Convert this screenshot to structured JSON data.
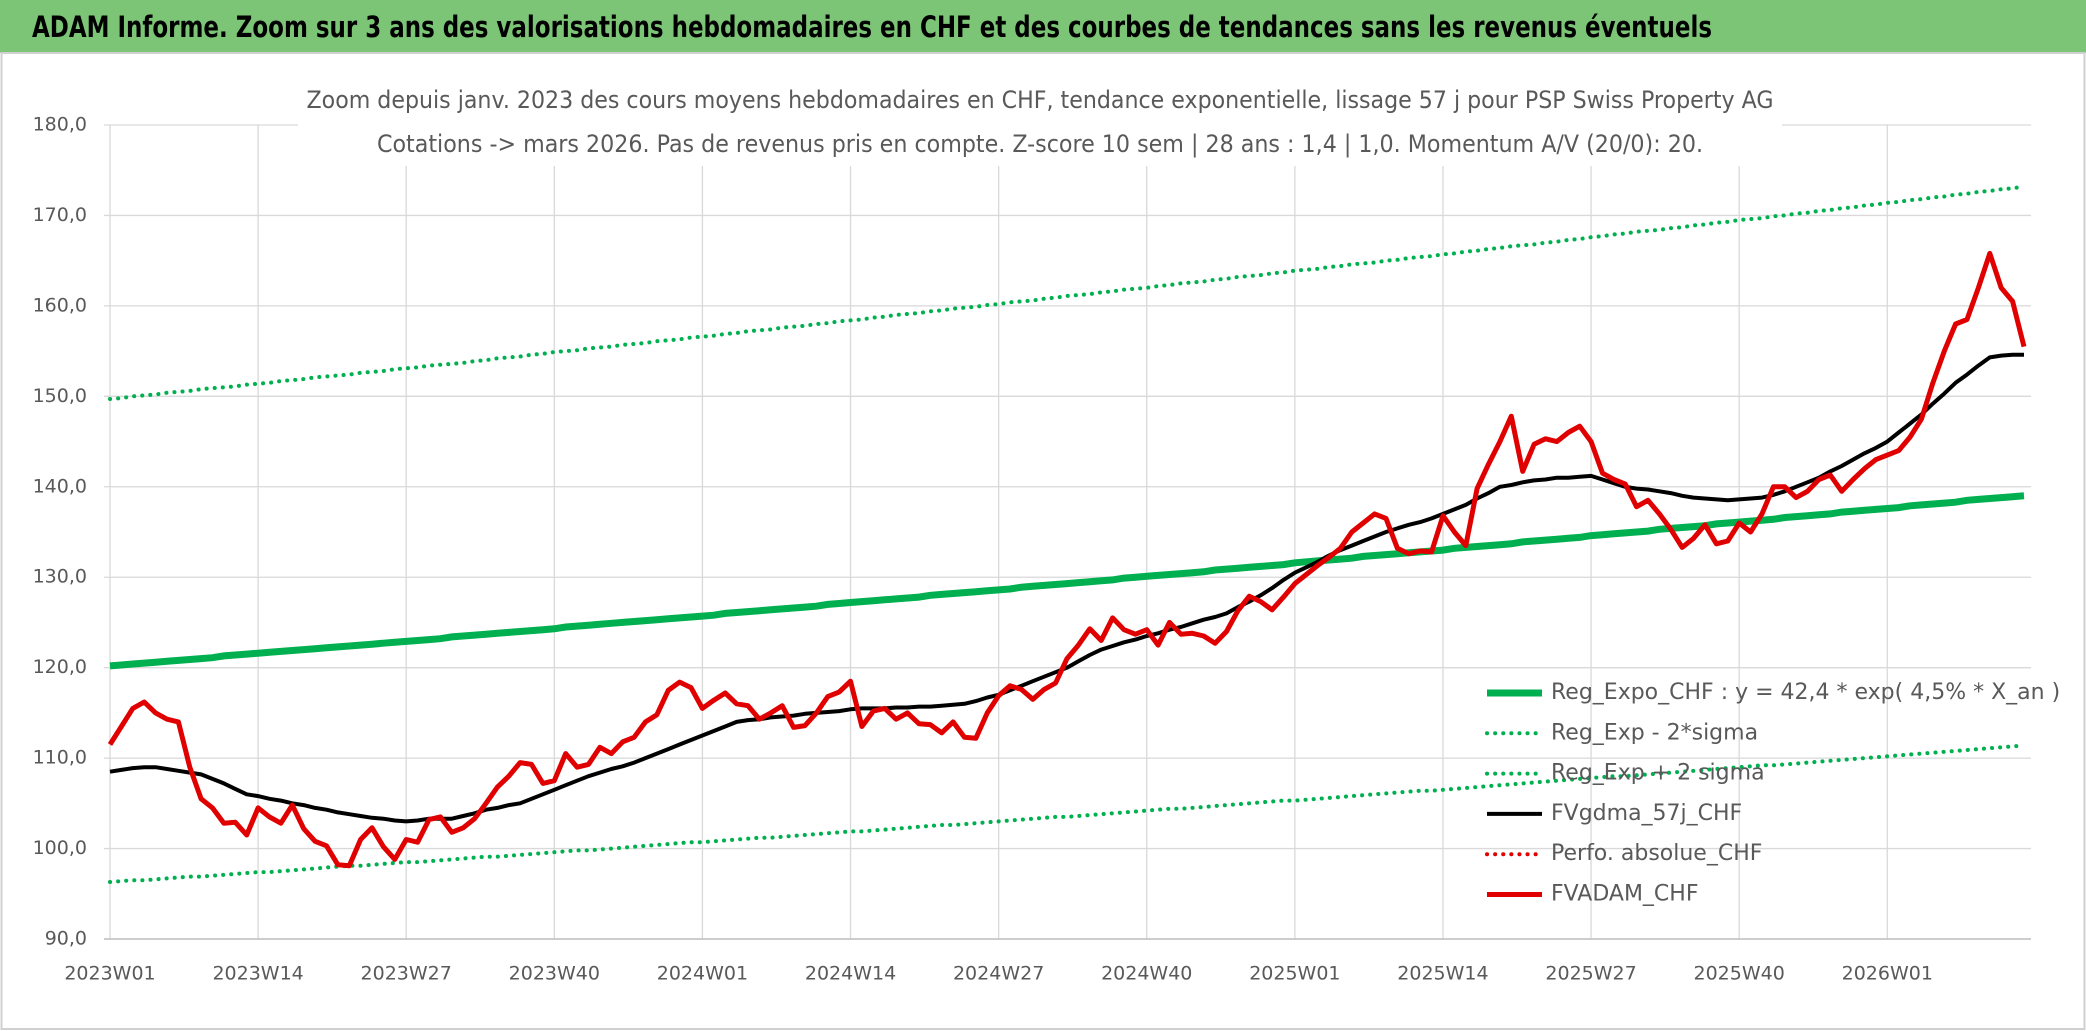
{
  "chart_data": {
    "type": "line",
    "banner": "ADAM Informe. Zoom sur 3 ans des valorisations hebdomadaires en CHF et des courbes de tendances sans les revenus éventuels",
    "title": "Zoom depuis janv. 2023 des cours moyens hebdomadaires en CHF, tendance exponentielle, lissage 57 j pour PSP Swiss Property AG",
    "subtitle": "Cotations -> mars 2026. Pas de revenus pris en compte. Z-score 10 sem | 28 ans : 1,4 | 1,0. Momentum A/V (20/0): 20.",
    "categories": [
      "2023W01",
      null,
      null,
      null,
      null,
      null,
      null,
      null,
      null,
      null,
      null,
      null,
      null,
      "2023W14",
      null,
      null,
      null,
      null,
      null,
      null,
      null,
      null,
      null,
      null,
      null,
      null,
      "2023W27",
      null,
      null,
      null,
      null,
      null,
      null,
      null,
      null,
      null,
      null,
      null,
      null,
      "2023W40",
      null,
      null,
      null,
      null,
      null,
      null,
      null,
      null,
      null,
      null,
      null,
      null,
      "2024W01",
      null,
      null,
      null,
      null,
      null,
      null,
      null,
      null,
      null,
      null,
      null,
      null,
      "2024W14",
      null,
      null,
      null,
      null,
      null,
      null,
      null,
      null,
      null,
      null,
      null,
      null,
      "2024W27",
      null,
      null,
      null,
      null,
      null,
      null,
      null,
      null,
      null,
      null,
      null,
      null,
      "2024W40",
      null,
      null,
      null,
      null,
      null,
      null,
      null,
      null,
      null,
      null,
      null,
      null,
      "2025W01",
      null,
      null,
      null,
      null,
      null,
      null,
      null,
      null,
      null,
      null,
      null,
      null,
      "2025W14",
      null,
      null,
      null,
      null,
      null,
      null,
      null,
      null,
      null,
      null,
      null,
      null,
      "2025W27",
      null,
      null,
      null,
      null,
      null,
      null,
      null,
      null,
      null,
      null,
      null,
      null,
      "2025W40",
      null,
      null,
      null,
      null,
      null,
      null,
      null,
      null,
      null,
      null,
      null,
      null,
      "2026W01",
      null,
      null,
      null,
      null,
      null,
      null,
      null,
      null,
      null,
      null,
      null,
      null
    ],
    "ylim": [
      90,
      180
    ],
    "yticks": [
      {
        "value": 90,
        "label": "90,0"
      },
      {
        "value": 100,
        "label": "100,0"
      },
      {
        "value": 110,
        "label": "110,0"
      },
      {
        "value": 120,
        "label": "120,0"
      },
      {
        "value": 130,
        "label": "130,0"
      },
      {
        "value": 140,
        "label": "140,0"
      },
      {
        "value": 150,
        "label": "150,0"
      },
      {
        "value": 160,
        "label": "160,0"
      },
      {
        "value": 170,
        "label": "170,0"
      },
      {
        "value": 180,
        "label": "180,0"
      }
    ],
    "grid": true,
    "legend": "bottom-right",
    "series": [
      {
        "name": "Reg_Expo_CHF : y = 42,4 * exp( 4,5% *  X_an )",
        "color": "#00b050",
        "style": "thick",
        "values": [
          120.2,
          120.3,
          120.4,
          120.5,
          120.6,
          120.7,
          120.8,
          120.9,
          121.0,
          121.1,
          121.3,
          121.4,
          121.5,
          121.6,
          121.7,
          121.8,
          121.9,
          122.0,
          122.1,
          122.2,
          122.3,
          122.4,
          122.5,
          122.6,
          122.7,
          122.8,
          122.9,
          123.0,
          123.1,
          123.2,
          123.4,
          123.5,
          123.6,
          123.7,
          123.8,
          123.9,
          124.0,
          124.1,
          124.2,
          124.3,
          124.5,
          124.6,
          124.7,
          124.8,
          124.9,
          125.0,
          125.1,
          125.2,
          125.3,
          125.4,
          125.5,
          125.6,
          125.7,
          125.8,
          126.0,
          126.1,
          126.2,
          126.3,
          126.4,
          126.5,
          126.6,
          126.7,
          126.8,
          127.0,
          127.1,
          127.2,
          127.3,
          127.4,
          127.5,
          127.6,
          127.7,
          127.8,
          128.0,
          128.1,
          128.2,
          128.3,
          128.4,
          128.5,
          128.6,
          128.7,
          128.9,
          129.0,
          129.1,
          129.2,
          129.3,
          129.4,
          129.5,
          129.6,
          129.7,
          129.9,
          130.0,
          130.1,
          130.2,
          130.3,
          130.4,
          130.5,
          130.6,
          130.8,
          130.9,
          131.0,
          131.1,
          131.2,
          131.3,
          131.4,
          131.6,
          131.7,
          131.8,
          131.9,
          132.0,
          132.1,
          132.3,
          132.4,
          132.5,
          132.6,
          132.7,
          132.8,
          132.9,
          133.0,
          133.2,
          133.3,
          133.4,
          133.5,
          133.6,
          133.7,
          133.9,
          134.0,
          134.1,
          134.2,
          134.3,
          134.4,
          134.6,
          134.7,
          134.8,
          134.9,
          135.0,
          135.1,
          135.3,
          135.4,
          135.5,
          135.6,
          135.7,
          135.9,
          136.0,
          136.1,
          136.2,
          136.3,
          136.4,
          136.6,
          136.7,
          136.8,
          136.9,
          137.0,
          137.2,
          137.3,
          137.4,
          137.5,
          137.6,
          137.7,
          137.9,
          138.0,
          138.1,
          138.2,
          138.3,
          138.5,
          138.6,
          138.7,
          138.8,
          138.9,
          139.0
        ]
      },
      {
        "name": "Reg_Exp - 2*sigma",
        "color": "#00b050",
        "style": "dotted",
        "values": [
          96.3,
          96.4,
          96.5,
          96.5,
          96.6,
          96.7,
          96.8,
          96.9,
          96.9,
          97.0,
          97.1,
          97.2,
          97.3,
          97.4,
          97.4,
          97.5,
          97.6,
          97.7,
          97.8,
          97.9,
          98.0,
          98.1,
          98.1,
          98.2,
          98.3,
          98.4,
          98.5,
          98.5,
          98.6,
          98.7,
          98.8,
          98.9,
          99.0,
          99.1,
          99.1,
          99.2,
          99.3,
          99.4,
          99.5,
          99.6,
          99.7,
          99.8,
          99.8,
          99.9,
          100.0,
          100.1,
          100.2,
          100.3,
          100.4,
          100.5,
          100.6,
          100.7,
          100.7,
          100.8,
          100.9,
          101.0,
          101.1,
          101.2,
          101.2,
          101.3,
          101.4,
          101.5,
          101.6,
          101.7,
          101.8,
          101.9,
          101.9,
          102.0,
          102.1,
          102.2,
          102.3,
          102.4,
          102.5,
          102.6,
          102.6,
          102.7,
          102.8,
          102.9,
          103.0,
          103.1,
          103.2,
          103.3,
          103.4,
          103.5,
          103.5,
          103.6,
          103.7,
          103.8,
          103.9,
          104.0,
          104.1,
          104.2,
          104.3,
          104.4,
          104.4,
          104.5,
          104.6,
          104.7,
          104.8,
          104.9,
          105.0,
          105.1,
          105.2,
          105.3,
          105.3,
          105.4,
          105.5,
          105.6,
          105.7,
          105.8,
          105.9,
          106.0,
          106.1,
          106.2,
          106.3,
          106.4,
          106.4,
          106.5,
          106.6,
          106.7,
          106.8,
          106.9,
          107.0,
          107.1,
          107.2,
          107.3,
          107.4,
          107.5,
          107.6,
          107.7,
          107.8,
          107.9,
          108.0,
          108.0,
          108.1,
          108.2,
          108.3,
          108.4,
          108.5,
          108.6,
          108.7,
          108.8,
          108.9,
          109.0,
          109.1,
          109.2,
          109.2,
          109.3,
          109.4,
          109.5,
          109.6,
          109.7,
          109.8,
          109.9,
          110.0,
          110.1,
          110.2,
          110.3,
          110.4,
          110.5,
          110.6,
          110.7,
          110.8,
          110.9,
          111.0,
          111.1,
          111.2,
          111.3,
          111.4
        ]
      },
      {
        "name": "Reg_Exp + 2 sigma",
        "color": "#00b050",
        "style": "dotted",
        "values": [
          149.7,
          149.8,
          150.0,
          150.1,
          150.2,
          150.4,
          150.5,
          150.6,
          150.8,
          150.9,
          151.0,
          151.1,
          151.3,
          151.4,
          151.5,
          151.7,
          151.8,
          151.9,
          152.1,
          152.2,
          152.3,
          152.4,
          152.6,
          152.7,
          152.8,
          153.0,
          153.1,
          153.2,
          153.4,
          153.5,
          153.6,
          153.7,
          153.9,
          154.0,
          154.2,
          154.3,
          154.4,
          154.6,
          154.7,
          154.9,
          155.0,
          155.1,
          155.3,
          155.4,
          155.5,
          155.7,
          155.8,
          155.9,
          156.1,
          156.2,
          156.3,
          156.5,
          156.6,
          156.7,
          156.9,
          157.0,
          157.2,
          157.3,
          157.4,
          157.6,
          157.7,
          157.8,
          158.0,
          158.1,
          158.3,
          158.4,
          158.5,
          158.7,
          158.8,
          159.0,
          159.1,
          159.2,
          159.4,
          159.5,
          159.7,
          159.8,
          159.9,
          160.1,
          160.2,
          160.4,
          160.5,
          160.6,
          160.8,
          160.9,
          161.1,
          161.2,
          161.3,
          161.5,
          161.6,
          161.8,
          161.9,
          162.0,
          162.2,
          162.3,
          162.5,
          162.6,
          162.7,
          162.9,
          163.0,
          163.2,
          163.3,
          163.4,
          163.6,
          163.7,
          163.9,
          164.0,
          164.1,
          164.3,
          164.4,
          164.6,
          164.7,
          164.8,
          165.0,
          165.1,
          165.3,
          165.4,
          165.5,
          165.7,
          165.8,
          166.0,
          166.1,
          166.3,
          166.4,
          166.6,
          166.7,
          166.8,
          167.0,
          167.1,
          167.3,
          167.4,
          167.6,
          167.7,
          167.9,
          168.0,
          168.2,
          168.3,
          168.4,
          168.6,
          168.7,
          168.9,
          169.0,
          169.2,
          169.3,
          169.5,
          169.6,
          169.7,
          169.9,
          170.0,
          170.2,
          170.3,
          170.5,
          170.6,
          170.8,
          170.9,
          171.1,
          171.2,
          171.4,
          171.5,
          171.7,
          171.8,
          172.0,
          172.1,
          172.3,
          172.4,
          172.6,
          172.7,
          172.9,
          173.0,
          173.2
        ]
      },
      {
        "name": "FVgdma_57j_CHF",
        "color": "#000000",
        "style": "solid",
        "values": [
          108.5,
          108.7,
          108.9,
          109.0,
          109.0,
          108.8,
          108.6,
          108.4,
          108.2,
          107.7,
          107.2,
          106.6,
          106.0,
          105.8,
          105.5,
          105.3,
          105.0,
          104.8,
          104.5,
          104.3,
          104.0,
          103.8,
          103.6,
          103.4,
          103.3,
          103.1,
          103.0,
          103.1,
          103.3,
          103.3,
          103.3,
          103.6,
          103.9,
          104.3,
          104.5,
          104.8,
          105.0,
          105.5,
          106.0,
          106.5,
          107.0,
          107.5,
          108.0,
          108.4,
          108.8,
          109.1,
          109.5,
          110.0,
          110.5,
          111.0,
          111.5,
          112.0,
          112.5,
          113.0,
          113.5,
          114.0,
          114.2,
          114.3,
          114.5,
          114.6,
          114.7,
          114.9,
          115.0,
          115.1,
          115.2,
          115.4,
          115.5,
          115.5,
          115.5,
          115.6,
          115.6,
          115.7,
          115.7,
          115.8,
          115.9,
          116.0,
          116.3,
          116.7,
          117.0,
          117.5,
          118.0,
          118.5,
          119.0,
          119.5,
          120.0,
          120.7,
          121.4,
          122.0,
          122.4,
          122.8,
          123.1,
          123.5,
          123.8,
          124.2,
          124.5,
          124.9,
          125.3,
          125.6,
          126.0,
          126.7,
          127.3,
          128.0,
          128.8,
          129.7,
          130.5,
          131.1,
          131.7,
          132.4,
          133.0,
          133.5,
          134.0,
          134.5,
          135.0,
          135.4,
          135.8,
          136.1,
          136.5,
          137.0,
          137.5,
          138.0,
          138.7,
          139.3,
          140.0,
          140.2,
          140.5,
          140.7,
          140.8,
          141.0,
          141.0,
          141.1,
          141.2,
          140.8,
          140.4,
          140.0,
          139.8,
          139.7,
          139.5,
          139.3,
          139.0,
          138.8,
          138.7,
          138.6,
          138.5,
          138.6,
          138.7,
          138.8,
          139.1,
          139.5,
          140.0,
          140.5,
          141.0,
          141.7,
          142.3,
          143.0,
          143.7,
          144.3,
          145.0,
          146.0,
          147.0,
          148.0,
          149.2,
          150.3,
          151.5,
          152.4,
          153.4,
          154.3,
          154.5,
          154.6,
          154.6
        ]
      },
      {
        "name": "Perfo. absolue_CHF",
        "color": "#e00000",
        "style": "dotted"
      },
      {
        "name": "FVADAM_CHF",
        "color": "#e00000",
        "style": "solid",
        "values": [
          111.5,
          113.5,
          115.5,
          116.2,
          115.0,
          114.3,
          114.0,
          109.0,
          105.5,
          104.5,
          102.8,
          102.9,
          101.5,
          104.5,
          103.5,
          102.8,
          104.8,
          102.2,
          100.8,
          100.3,
          98.2,
          98.1,
          101.0,
          102.3,
          100.2,
          98.8,
          101.0,
          100.7,
          103.2,
          103.5,
          101.8,
          102.3,
          103.3,
          105.0,
          106.8,
          108.0,
          109.5,
          109.3,
          107.2,
          107.5,
          110.5,
          109.0,
          109.3,
          111.2,
          110.5,
          111.8,
          112.3,
          114.0,
          114.8,
          117.5,
          118.4,
          117.8,
          115.5,
          116.4,
          117.2,
          116.0,
          115.8,
          114.3,
          115.0,
          115.8,
          113.4,
          113.6,
          115.0,
          116.8,
          117.3,
          118.5,
          113.5,
          115.2,
          115.5,
          114.3,
          115.0,
          113.8,
          113.7,
          112.8,
          114.0,
          112.3,
          112.2,
          115.0,
          116.9,
          118.0,
          117.6,
          116.5,
          117.6,
          118.3,
          121.0,
          122.5,
          124.3,
          123.0,
          125.5,
          124.2,
          123.7,
          124.2,
          122.5,
          125.0,
          123.7,
          123.8,
          123.5,
          122.7,
          124.0,
          126.3,
          127.9,
          127.3,
          126.4,
          127.8,
          129.3,
          130.3,
          131.3,
          132.2,
          133.2,
          135.0,
          136.0,
          137.0,
          136.5,
          133.2,
          132.6,
          132.9,
          132.8,
          136.8,
          135.0,
          133.5,
          139.8,
          142.5,
          145.0,
          147.8,
          141.7,
          144.7,
          145.3,
          145.0,
          146.0,
          146.7,
          145.0,
          141.5,
          140.8,
          140.3,
          137.8,
          138.5,
          137.0,
          135.3,
          133.3,
          134.3,
          135.8,
          133.7,
          134.0,
          136.0,
          135.0,
          137.0,
          140.0,
          140.0,
          138.8,
          139.5,
          140.8,
          141.3,
          139.5,
          140.8,
          142.0,
          143.0,
          143.5,
          144.0,
          145.5,
          147.5,
          151.5,
          155.0,
          158.0,
          158.5,
          162.0,
          165.8,
          162.0,
          160.5,
          155.5
        ]
      }
    ]
  }
}
